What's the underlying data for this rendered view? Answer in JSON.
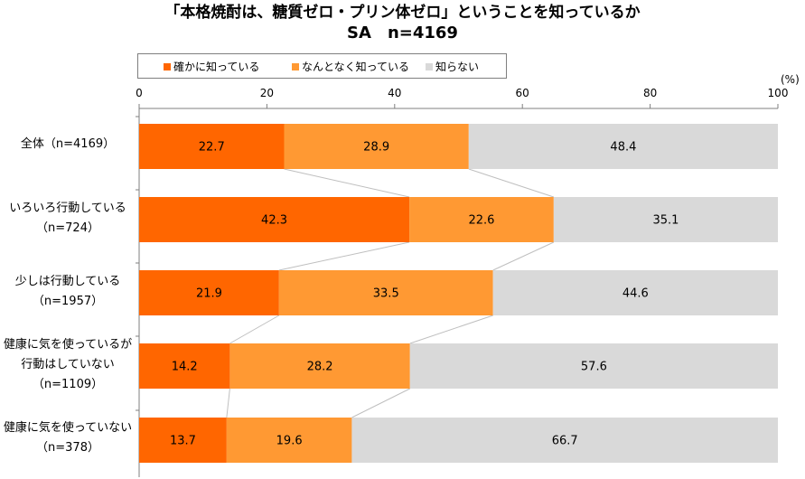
{
  "title_line1": "「本格焼酎は、糖質ゼロ・プリン体ゼロ」ということを知っているか",
  "title_line2": "SA　n=4169",
  "unit_label": "(%)",
  "colors": {
    "know_well": "#FF6600",
    "somewhat": "#FF9933",
    "dont_know": "#D9D9D9",
    "axis": "#7f7f7f",
    "connector": "#bfbfbf"
  },
  "chart_data": {
    "type": "bar",
    "orientation": "horizontal",
    "stacked": true,
    "percent_stacked": true,
    "title": "「本格焼酎は、糖質ゼロ・プリン体ゼロ」ということを知っているか",
    "subtitle": "SA　n=4169",
    "xlim": [
      0,
      100
    ],
    "xticks": [
      "0",
      "20",
      "40",
      "60",
      "80",
      "100"
    ],
    "legend_position": "top",
    "categories": [
      [
        "全体（n=4169）"
      ],
      [
        "いろいろ行動している",
        "（n=724）"
      ],
      [
        "少しは行動している",
        "（n=1957）"
      ],
      [
        "健康に気を使っているが",
        "行動はしていない",
        "（n=1109）"
      ],
      [
        "健康に気を使っていない",
        "（n=378）"
      ]
    ],
    "series": [
      {
        "name": "確かに知っている",
        "values": [
          22.7,
          42.3,
          21.9,
          14.2,
          13.7
        ]
      },
      {
        "name": "なんとなく知っている",
        "values": [
          28.9,
          22.6,
          33.5,
          28.2,
          19.6
        ]
      },
      {
        "name": "知らない",
        "values": [
          48.4,
          35.1,
          44.6,
          57.6,
          66.7
        ]
      }
    ]
  }
}
